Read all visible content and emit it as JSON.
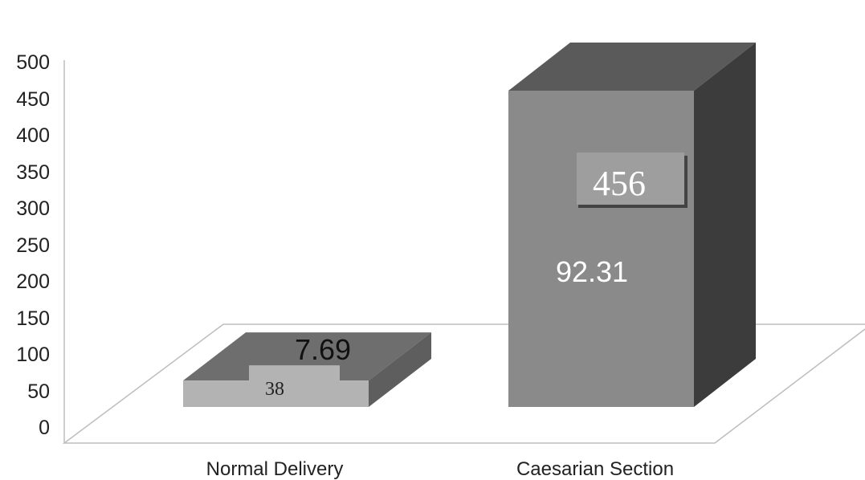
{
  "chart_data": {
    "type": "bar",
    "categories": [
      "Normal Delivery",
      "Caesarian Section"
    ],
    "values": [
      38,
      456
    ],
    "percent_labels": [
      "7.69",
      "92.31"
    ],
    "count_labels": [
      "38",
      "456"
    ],
    "yticks": [
      "0",
      "50",
      "100",
      "150",
      "200",
      "250",
      "300",
      "350",
      "400",
      "450",
      "500"
    ],
    "ylim": [
      0,
      500
    ],
    "title": "",
    "xlabel": "",
    "ylabel": "",
    "grid": false,
    "legend": "none",
    "colors": {
      "bar_front_small": "#b3b3b3",
      "bar_top_small": "#6e6e6e",
      "bar_side_small": "#5e5e5e",
      "bar_front_large": "#8a8a8a",
      "bar_top_large": "#5a5a5a",
      "bar_side_large": "#3c3c3c",
      "floor_line": "#bdbdbd",
      "count_box": "#9e9e9e",
      "count_box_shadow": "#444444"
    }
  }
}
